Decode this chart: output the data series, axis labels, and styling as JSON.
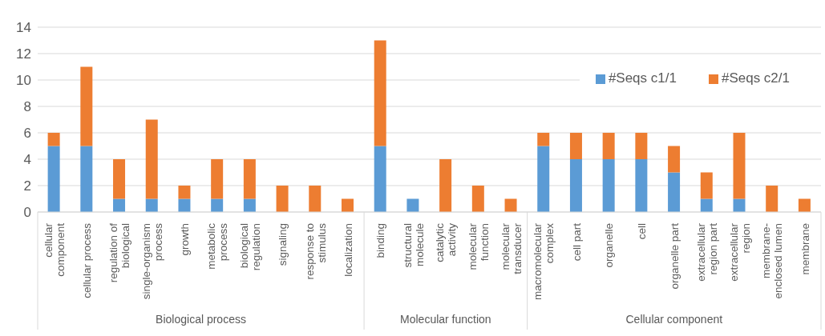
{
  "chart_data": {
    "type": "bar",
    "stacked": true,
    "categories": [
      "cellular component",
      "cellular process",
      "regulation of biological",
      "single-organism process",
      "growth",
      "metabolic process",
      "biological regulation",
      "signaling",
      "response to stimulus",
      "localization",
      "binding",
      "structural molecule",
      "catalytic activity",
      "molecular function",
      "molecular transducer",
      "macromolecular complex",
      "cell part",
      "organelle",
      "cell",
      "organelle part",
      "extracellular region part",
      "extracellular region",
      "membrane-enclosed lumen",
      "membrane"
    ],
    "series": [
      {
        "name": "#Seqs c1/1",
        "color": "#5b9bd5",
        "values": [
          5,
          5,
          1,
          1,
          1,
          1,
          1,
          0,
          0,
          0,
          5,
          1,
          0,
          0,
          0,
          5,
          4,
          4,
          4,
          3,
          1,
          1,
          0,
          0
        ]
      },
      {
        "name": "#Seqs c2/1",
        "color": "#ed7d31",
        "values": [
          1,
          6,
          3,
          6,
          1,
          3,
          3,
          2,
          2,
          1,
          8,
          0,
          4,
          2,
          1,
          1,
          2,
          2,
          2,
          2,
          2,
          5,
          2,
          1
        ]
      }
    ],
    "ylim": [
      0,
      14
    ],
    "yticks": [
      0,
      2,
      4,
      6,
      8,
      10,
      12,
      14
    ],
    "grid": "y",
    "legend": "top right",
    "annotations": [
      "Biological process",
      "Molecular function",
      "Cellular component"
    ]
  }
}
